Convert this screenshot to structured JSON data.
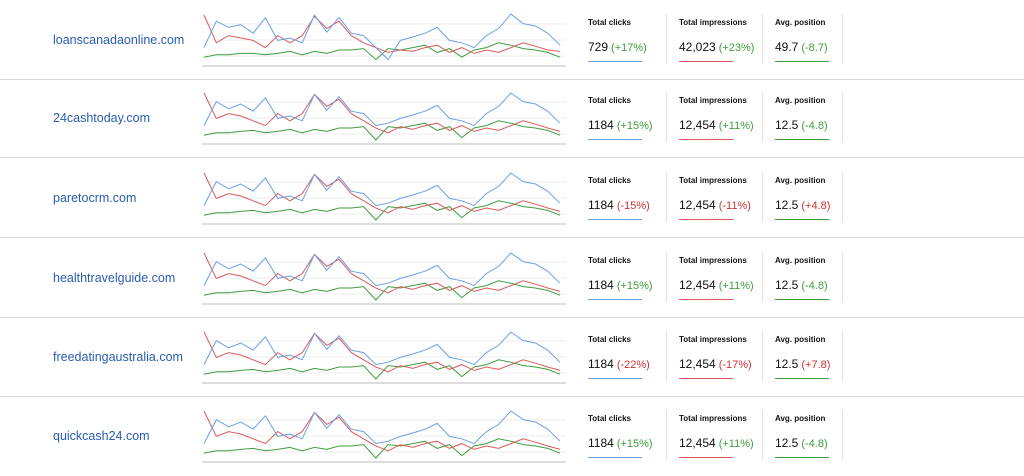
{
  "colors": {
    "clicks": "#6aa0e6",
    "impressions": "#dd5a5a",
    "position": "#3e9e3e",
    "positive": "#3e9e3e",
    "negative": "#cc3333",
    "link": "#2a5db0"
  },
  "labels": {
    "clicks": "Total clicks",
    "impressions": "Total impressions",
    "position": "Avg. position"
  },
  "rows": [
    {
      "site": "loanscanadaonline.com",
      "clicks": {
        "value": "729",
        "change": "(+17%)",
        "trend": "positive"
      },
      "impressions": {
        "value": "42,023",
        "change": "(+23%)",
        "trend": "positive"
      },
      "position": {
        "value": "49.7",
        "change": "(-8.7)",
        "trend": "positive"
      },
      "spark": {
        "clicks": [
          0.3,
          0.85,
          0.72,
          0.78,
          0.6,
          0.92,
          0.45,
          0.5,
          0.4,
          0.98,
          0.62,
          0.93,
          0.6,
          0.55,
          0.3,
          0.05,
          0.45,
          0.52,
          0.6,
          0.72,
          0.45,
          0.4,
          0.3,
          0.55,
          0.7,
          1.0,
          0.8,
          0.75,
          0.6,
          0.35
        ],
        "impressions": [
          0.98,
          0.4,
          0.55,
          0.5,
          0.45,
          0.3,
          0.55,
          0.4,
          0.55,
          0.95,
          0.7,
          0.85,
          0.55,
          0.4,
          0.3,
          0.2,
          0.25,
          0.22,
          0.3,
          0.35,
          0.2,
          0.3,
          0.18,
          0.25,
          0.2,
          0.3,
          0.4,
          0.33,
          0.25,
          0.22
        ],
        "position": [
          0.1,
          0.15,
          0.15,
          0.18,
          0.18,
          0.15,
          0.18,
          0.22,
          0.15,
          0.22,
          0.18,
          0.25,
          0.25,
          0.28,
          0.05,
          0.28,
          0.25,
          0.3,
          0.35,
          0.2,
          0.28,
          0.1,
          0.25,
          0.3,
          0.4,
          0.35,
          0.28,
          0.25,
          0.2,
          0.1
        ]
      }
    },
    {
      "site": "24cashtoday.com",
      "clicks": {
        "value": "1184",
        "change": "(+15%)",
        "trend": "positive"
      },
      "impressions": {
        "value": "12,454",
        "change": "(+11%)",
        "trend": "positive"
      },
      "position": {
        "value": "12.5",
        "change": "(-4.8)",
        "trend": "positive"
      },
      "spark": {
        "clicks": [
          0.3,
          0.8,
          0.65,
          0.75,
          0.6,
          0.88,
          0.45,
          0.5,
          0.4,
          0.95,
          0.62,
          0.9,
          0.6,
          0.55,
          0.3,
          0.35,
          0.45,
          0.52,
          0.6,
          0.72,
          0.45,
          0.4,
          0.3,
          0.55,
          0.7,
          0.98,
          0.8,
          0.75,
          0.6,
          0.35
        ],
        "impressions": [
          0.98,
          0.45,
          0.55,
          0.5,
          0.4,
          0.3,
          0.55,
          0.4,
          0.55,
          0.95,
          0.7,
          0.85,
          0.55,
          0.4,
          0.25,
          0.15,
          0.28,
          0.22,
          0.3,
          0.35,
          0.2,
          0.3,
          0.18,
          0.25,
          0.2,
          0.3,
          0.4,
          0.33,
          0.25,
          0.18
        ],
        "position": [
          0.1,
          0.15,
          0.15,
          0.18,
          0.2,
          0.15,
          0.18,
          0.22,
          0.15,
          0.22,
          0.18,
          0.25,
          0.25,
          0.28,
          0.0,
          0.28,
          0.25,
          0.3,
          0.35,
          0.2,
          0.28,
          0.05,
          0.25,
          0.3,
          0.4,
          0.35,
          0.28,
          0.25,
          0.2,
          0.1
        ]
      }
    },
    {
      "site": "paretocrm.com",
      "clicks": {
        "value": "1184",
        "change": "(-15%)",
        "trend": "negative"
      },
      "impressions": {
        "value": "12,454",
        "change": "(-11%)",
        "trend": "negative"
      },
      "position": {
        "value": "12.5",
        "change": "(+4.8)",
        "trend": "negative"
      },
      "spark": {
        "clicks": [
          0.3,
          0.8,
          0.65,
          0.75,
          0.6,
          0.88,
          0.45,
          0.5,
          0.4,
          0.95,
          0.62,
          0.9,
          0.6,
          0.55,
          0.3,
          0.35,
          0.45,
          0.52,
          0.6,
          0.72,
          0.45,
          0.4,
          0.3,
          0.55,
          0.7,
          0.98,
          0.8,
          0.75,
          0.6,
          0.35
        ],
        "impressions": [
          0.98,
          0.45,
          0.55,
          0.5,
          0.4,
          0.3,
          0.55,
          0.4,
          0.55,
          0.95,
          0.7,
          0.85,
          0.55,
          0.4,
          0.25,
          0.15,
          0.28,
          0.22,
          0.3,
          0.35,
          0.2,
          0.3,
          0.18,
          0.25,
          0.2,
          0.3,
          0.4,
          0.33,
          0.25,
          0.18
        ],
        "position": [
          0.1,
          0.15,
          0.15,
          0.18,
          0.2,
          0.15,
          0.18,
          0.22,
          0.15,
          0.22,
          0.18,
          0.25,
          0.25,
          0.28,
          0.0,
          0.28,
          0.25,
          0.3,
          0.35,
          0.2,
          0.28,
          0.05,
          0.25,
          0.3,
          0.4,
          0.35,
          0.28,
          0.25,
          0.2,
          0.1
        ]
      }
    },
    {
      "site": "healthtravelguide.com",
      "clicks": {
        "value": "1184",
        "change": "(+15%)",
        "trend": "positive"
      },
      "impressions": {
        "value": "12,454",
        "change": "(+11%)",
        "trend": "positive"
      },
      "position": {
        "value": "12.5",
        "change": "(-4.8)",
        "trend": "positive"
      },
      "spark": {
        "clicks": [
          0.3,
          0.8,
          0.65,
          0.75,
          0.6,
          0.88,
          0.45,
          0.5,
          0.4,
          0.95,
          0.62,
          0.9,
          0.6,
          0.55,
          0.3,
          0.35,
          0.45,
          0.52,
          0.6,
          0.72,
          0.45,
          0.4,
          0.3,
          0.55,
          0.7,
          0.98,
          0.8,
          0.75,
          0.6,
          0.35
        ],
        "impressions": [
          0.98,
          0.45,
          0.55,
          0.5,
          0.4,
          0.3,
          0.55,
          0.4,
          0.55,
          0.95,
          0.7,
          0.85,
          0.55,
          0.4,
          0.25,
          0.15,
          0.28,
          0.22,
          0.3,
          0.35,
          0.2,
          0.3,
          0.18,
          0.25,
          0.2,
          0.3,
          0.4,
          0.33,
          0.25,
          0.18
        ],
        "position": [
          0.1,
          0.15,
          0.15,
          0.18,
          0.2,
          0.15,
          0.18,
          0.22,
          0.15,
          0.22,
          0.18,
          0.25,
          0.25,
          0.28,
          0.0,
          0.28,
          0.25,
          0.3,
          0.35,
          0.2,
          0.28,
          0.05,
          0.25,
          0.3,
          0.4,
          0.35,
          0.28,
          0.25,
          0.2,
          0.1
        ]
      }
    },
    {
      "site": "freedatingaustralia.com",
      "clicks": {
        "value": "1184",
        "change": "(-22%)",
        "trend": "negative"
      },
      "impressions": {
        "value": "12,454",
        "change": "(-17%)",
        "trend": "negative"
      },
      "position": {
        "value": "12.5",
        "change": "(+7.8)",
        "trend": "negative"
      },
      "spark": {
        "clicks": [
          0.3,
          0.8,
          0.65,
          0.75,
          0.6,
          0.88,
          0.45,
          0.5,
          0.4,
          0.95,
          0.62,
          0.9,
          0.6,
          0.55,
          0.3,
          0.35,
          0.45,
          0.52,
          0.6,
          0.72,
          0.45,
          0.4,
          0.3,
          0.55,
          0.7,
          0.98,
          0.8,
          0.75,
          0.6,
          0.35
        ],
        "impressions": [
          0.98,
          0.45,
          0.55,
          0.5,
          0.4,
          0.3,
          0.55,
          0.4,
          0.55,
          0.95,
          0.7,
          0.85,
          0.55,
          0.4,
          0.25,
          0.15,
          0.28,
          0.22,
          0.3,
          0.35,
          0.2,
          0.3,
          0.18,
          0.25,
          0.2,
          0.3,
          0.4,
          0.33,
          0.25,
          0.18
        ],
        "position": [
          0.1,
          0.15,
          0.15,
          0.18,
          0.2,
          0.15,
          0.18,
          0.22,
          0.15,
          0.22,
          0.18,
          0.25,
          0.25,
          0.28,
          0.0,
          0.28,
          0.25,
          0.3,
          0.35,
          0.2,
          0.28,
          0.05,
          0.25,
          0.3,
          0.4,
          0.35,
          0.28,
          0.25,
          0.2,
          0.1
        ]
      }
    },
    {
      "site": "quickcash24.com",
      "clicks": {
        "value": "1184",
        "change": "(+15%)",
        "trend": "positive"
      },
      "impressions": {
        "value": "12,454",
        "change": "(+11%)",
        "trend": "positive"
      },
      "position": {
        "value": "12.5",
        "change": "(-4.8)",
        "trend": "positive"
      },
      "spark": {
        "clicks": [
          0.3,
          0.8,
          0.65,
          0.75,
          0.6,
          0.88,
          0.45,
          0.5,
          0.4,
          0.95,
          0.62,
          0.9,
          0.6,
          0.55,
          0.3,
          0.35,
          0.45,
          0.52,
          0.6,
          0.72,
          0.45,
          0.4,
          0.3,
          0.55,
          0.7,
          0.98,
          0.8,
          0.75,
          0.6,
          0.35
        ],
        "impressions": [
          0.98,
          0.45,
          0.55,
          0.5,
          0.4,
          0.3,
          0.55,
          0.4,
          0.55,
          0.95,
          0.7,
          0.85,
          0.55,
          0.4,
          0.25,
          0.15,
          0.28,
          0.22,
          0.3,
          0.35,
          0.2,
          0.3,
          0.18,
          0.25,
          0.2,
          0.3,
          0.4,
          0.33,
          0.25,
          0.18
        ],
        "position": [
          0.1,
          0.15,
          0.15,
          0.18,
          0.2,
          0.15,
          0.18,
          0.22,
          0.15,
          0.22,
          0.18,
          0.25,
          0.25,
          0.28,
          0.0,
          0.28,
          0.25,
          0.3,
          0.35,
          0.2,
          0.28,
          0.05,
          0.25,
          0.3,
          0.4,
          0.35,
          0.28,
          0.25,
          0.2,
          0.1
        ]
      }
    }
  ]
}
